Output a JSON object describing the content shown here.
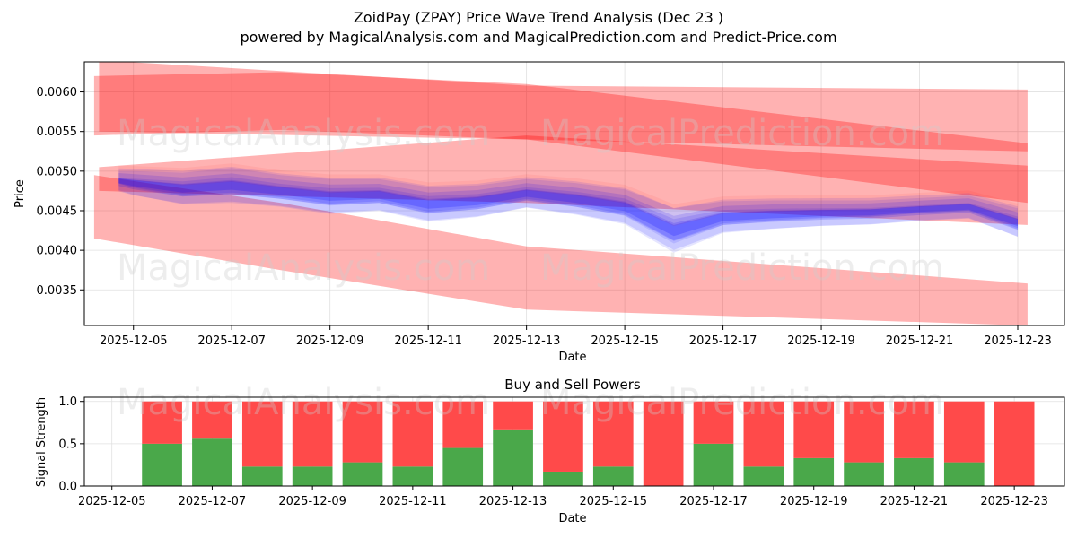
{
  "header": {
    "title": "ZoidPay (ZPAY) Price Wave Trend Analysis (Dec 23 )",
    "subtitle": "powered by MagicalAnalysis.com and MagicalPrediction.com and Predict-Price.com"
  },
  "watermarks": {
    "left": "MagicalAnalysis.com",
    "right": "MagicalPrediction.com"
  },
  "colors": {
    "red_band": "#ff0000",
    "blue_band": "#0000ff",
    "buy": "#4aa84a",
    "sell": "#ff4a4a",
    "grid": "#e0e0e0"
  },
  "chart_data": [
    {
      "type": "area",
      "title": "ZoidPay (ZPAY) Price Wave Trend Analysis (Dec 23 )",
      "xlabel": "Date",
      "ylabel": "Price",
      "ylim": [
        0.00305,
        0.00638
      ],
      "xlim": [
        "2025-12-04",
        "2025-12-23.95"
      ],
      "x_ticks": [
        "2025-12-05",
        "2025-12-07",
        "2025-12-09",
        "2025-12-11",
        "2025-12-13",
        "2025-12-15",
        "2025-12-17",
        "2025-12-19",
        "2025-12-21",
        "2025-12-23"
      ],
      "y_ticks": [
        "0.0035",
        "0.0040",
        "0.0045",
        "0.0050",
        "0.0055",
        "0.0060"
      ],
      "red_bands": [
        {
          "name": "upper-band",
          "x": [
            "2025-12-04.2",
            "2025-12-08",
            "2025-12-13",
            "2025-12-23.2"
          ],
          "lower": [
            0.00545,
            0.00552,
            0.0054,
            0.0046
          ],
          "upper": [
            0.0062,
            0.00625,
            0.0061,
            0.00535
          ]
        },
        {
          "name": "wide-top-band",
          "x": [
            "2025-12-04.3",
            "2025-12-13",
            "2025-12-23.2"
          ],
          "lower": [
            0.0055,
            0.0054,
            0.00525
          ],
          "upper": [
            0.0064,
            0.00608,
            0.00603
          ]
        },
        {
          "name": "mid-band",
          "x": [
            "2025-12-04.3",
            "2025-12-13",
            "2025-12-23.2"
          ],
          "lower": [
            0.00475,
            0.0046,
            0.00432
          ],
          "upper": [
            0.00505,
            0.00545,
            0.00507
          ]
        },
        {
          "name": "lower-band",
          "x": [
            "2025-12-04.2",
            "2025-12-08",
            "2025-12-13",
            "2025-12-23.2"
          ],
          "lower": [
            0.00415,
            0.00375,
            0.00325,
            0.00305
          ],
          "upper": [
            0.00495,
            0.0046,
            0.00405,
            0.00358
          ]
        }
      ],
      "blue_series": {
        "x": [
          "2025-12-04.7",
          "2025-12-05",
          "2025-12-06",
          "2025-12-07",
          "2025-12-08",
          "2025-12-09",
          "2025-12-10",
          "2025-12-11",
          "2025-12-12",
          "2025-12-13",
          "2025-12-14",
          "2025-12-15",
          "2025-12-16",
          "2025-12-17",
          "2025-12-18",
          "2025-12-19",
          "2025-12-20",
          "2025-12-21",
          "2025-12-22",
          "2025-12-23"
        ],
        "center": [
          0.00488,
          0.00485,
          0.00478,
          0.00482,
          0.00475,
          0.00468,
          0.0047,
          0.00458,
          0.00462,
          0.00472,
          0.00465,
          0.00455,
          0.00425,
          0.00442,
          0.00445,
          0.00447,
          0.00448,
          0.00452,
          0.00455,
          0.00435
        ],
        "spread": [
          0.00012,
          0.00015,
          0.0002,
          0.00022,
          0.0002,
          0.00022,
          0.0002,
          0.00022,
          0.0002,
          0.00018,
          0.0002,
          0.00022,
          0.00028,
          0.0002,
          0.00018,
          0.00016,
          0.00015,
          0.00014,
          0.00014,
          0.00018
        ]
      }
    },
    {
      "type": "bar",
      "title": "Buy and Sell Powers",
      "xlabel": "Date",
      "ylabel": "Signal Strength",
      "ylim": [
        0,
        1.05
      ],
      "y_ticks": [
        "0.0",
        "0.5",
        "1.0"
      ],
      "x_ticks": [
        "2025-12-05",
        "2025-12-07",
        "2025-12-09",
        "2025-12-11",
        "2025-12-13",
        "2025-12-15",
        "2025-12-17",
        "2025-12-19",
        "2025-12-21",
        "2025-12-23"
      ],
      "categories": [
        "2025-12-06",
        "2025-12-07",
        "2025-12-08",
        "2025-12-09",
        "2025-12-10",
        "2025-12-11",
        "2025-12-12",
        "2025-12-13",
        "2025-12-14",
        "2025-12-15",
        "2025-12-16",
        "2025-12-17",
        "2025-12-18",
        "2025-12-19",
        "2025-12-20",
        "2025-12-21",
        "2025-12-22",
        "2025-12-23"
      ],
      "series": [
        {
          "name": "Buy",
          "values": [
            0.5,
            0.56,
            0.23,
            0.23,
            0.28,
            0.23,
            0.45,
            0.67,
            0.17,
            0.23,
            0.0,
            0.5,
            0.23,
            0.33,
            0.28,
            0.33,
            0.28,
            0.0
          ]
        },
        {
          "name": "Sell",
          "values": [
            0.5,
            0.44,
            0.77,
            0.77,
            0.72,
            0.77,
            0.55,
            0.33,
            0.83,
            0.77,
            1.0,
            0.5,
            0.77,
            0.67,
            0.72,
            0.67,
            0.72,
            1.0
          ]
        }
      ]
    }
  ]
}
